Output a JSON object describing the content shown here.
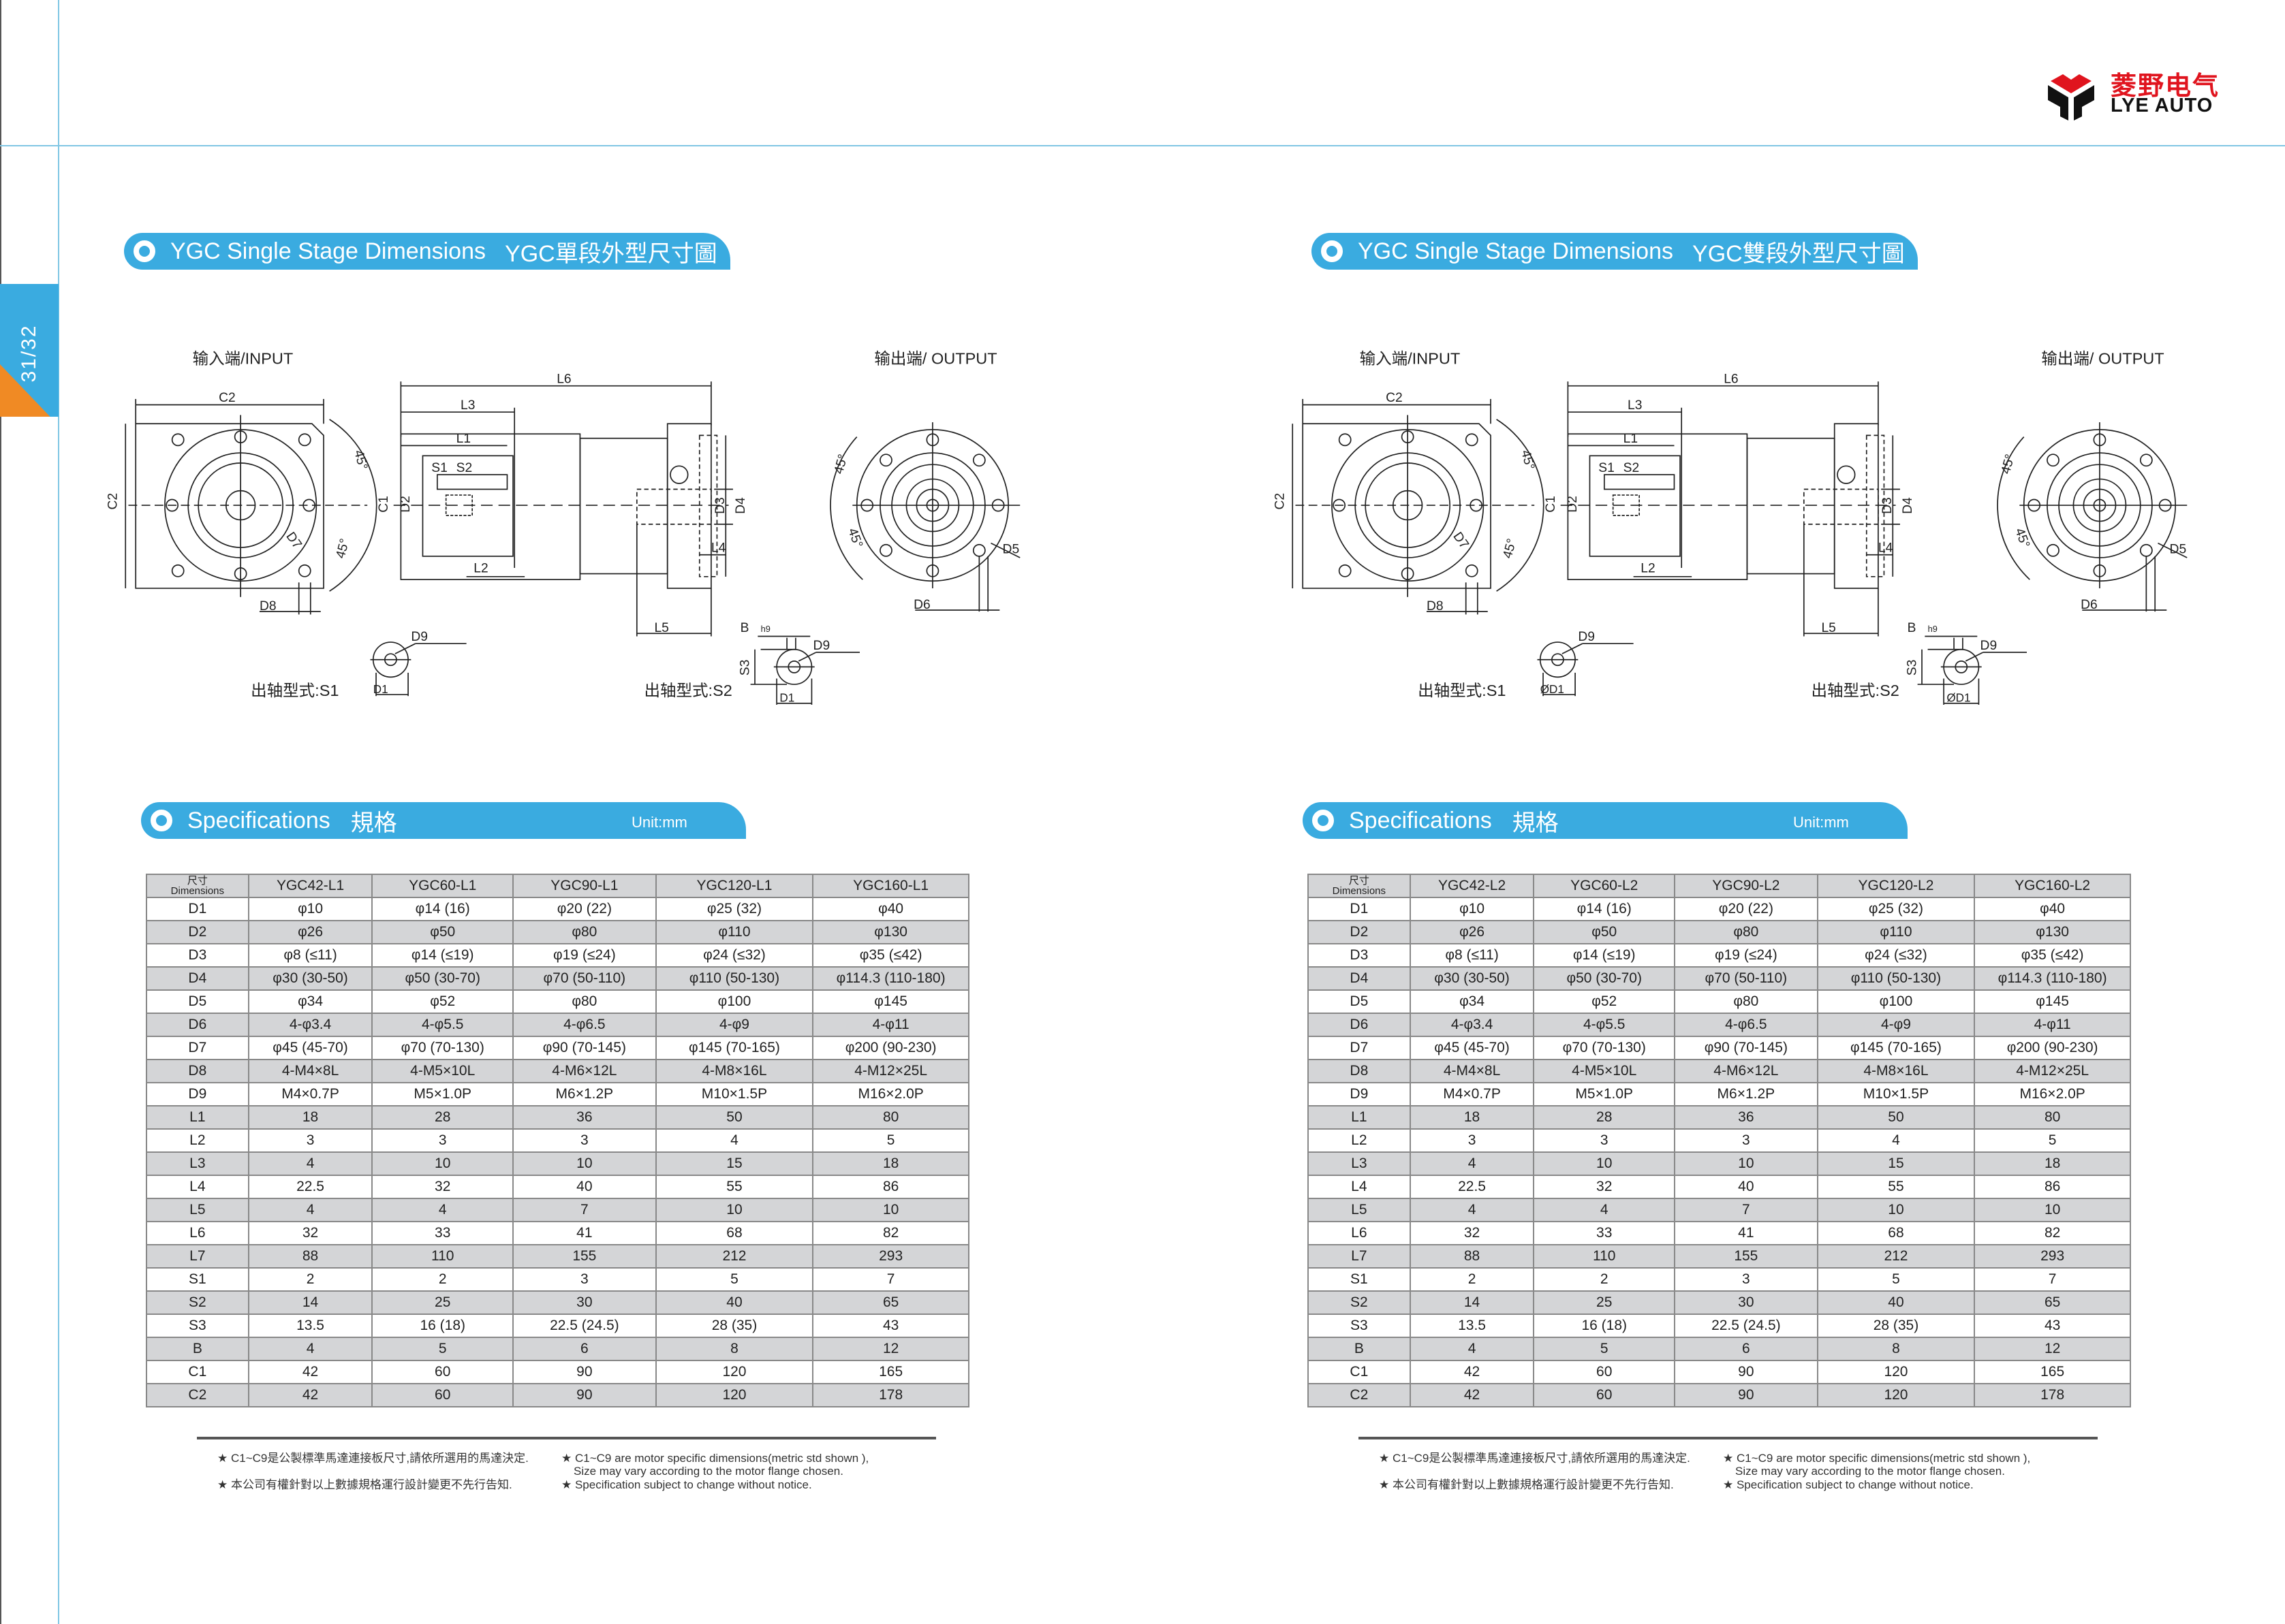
{
  "page_number": "31/32",
  "logo": {
    "cn": "菱野电气",
    "en": "LYE AUTO",
    "brand_red": "#e0141e"
  },
  "colors": {
    "accent_blue": "#3aabe0",
    "accent_orange": "#f08a24",
    "row_gray": "#d4d5d7"
  },
  "panels": [
    {
      "dim_title_en": "YGC Single Stage Dimensions",
      "dim_title_cn": "YGC單段外型尺寸圖",
      "drawing": {
        "input_caption": "输入端/INPUT",
        "output_caption": "输出端/ OUTPUT",
        "s1_caption": "出轴型式:S1",
        "s2_caption": "出轴型式:S2",
        "labels": {
          "C2": "C2",
          "C1": "C1",
          "D2": "D2",
          "L6": "L6",
          "L3": "L3",
          "L1": "L1",
          "S1": "S1",
          "S2": "S2",
          "D3": "D3",
          "D4": "D4",
          "L4": "L4",
          "L2": "L2",
          "L5": "L5",
          "D8": "D8",
          "D7": "D7",
          "deg": "45°",
          "D5": "D5",
          "D6": "D6",
          "D9": "D9",
          "D1_s1": "D1",
          "D1_s2": "D1",
          "B": "B",
          "h9": "h9",
          "S3": "S3"
        }
      },
      "spec_title_en": "Specifications",
      "spec_title_cn": "規格",
      "unit": "Unit:mm",
      "table": {
        "header_cn": "尺寸",
        "header_en": "Dimensions",
        "columns": [
          "YGC42-L1",
          "YGC60-L1",
          "YGC90-L1",
          "YGC120-L1",
          "YGC160-L1"
        ]
      },
      "footnotes": {
        "cn1": "★ C1~C9是公製標準馬達連接板尺寸,請依所選用的馬達決定.",
        "en1a": "★ C1~C9 are motor specific dimensions(metric std shown ),",
        "en1b": "Size may vary according to the motor flange chosen.",
        "cn2": "★ 本公司有權針對以上數據規格運行設計變更不先行告知.",
        "en2": "★ Specification subject to change without notice."
      }
    },
    {
      "dim_title_en": "YGC Single Stage Dimensions",
      "dim_title_cn": "YGC雙段外型尺寸圖",
      "drawing": {
        "input_caption": "输入端/INPUT",
        "output_caption": "输出端/ OUTPUT",
        "s1_caption": "出轴型式:S1",
        "s2_caption": "出轴型式:S2",
        "labels": {
          "C2": "C2",
          "C1": "C1",
          "D2": "D2",
          "L6": "L6",
          "L3": "L3",
          "L1": "L1",
          "S1": "S1",
          "S2": "S2",
          "D3": "D3",
          "D4": "D4",
          "L4": "L4",
          "L2": "L2",
          "L5": "L5",
          "D8": "D8",
          "D7": "D7",
          "deg": "45°",
          "D5": "D5",
          "D6": "D6",
          "D9": "D9",
          "D1_s1": "ØD1",
          "D1_s2": "ØD1",
          "B": "B",
          "h9": "h9",
          "S3": "S3"
        }
      },
      "spec_title_en": "Specifications",
      "spec_title_cn": "規格",
      "unit": "Unit:mm",
      "table": {
        "header_cn": "尺寸",
        "header_en": "Dimensions",
        "columns": [
          "YGC42-L2",
          "YGC60-L2",
          "YGC90-L2",
          "YGC120-L2",
          "YGC160-L2"
        ]
      },
      "footnotes": {
        "cn1": "★ C1~C9是公製標準馬達連接板尺寸,請依所選用的馬達決定.",
        "en1a": "★ C1~C9 are motor specific dimensions(metric std shown ),",
        "en1b": "Size may vary according to the motor flange chosen.",
        "cn2": "★ 本公司有權針對以上數據規格運行設計變更不先行告知.",
        "en2": "★ Specification subject to change without notice."
      }
    }
  ],
  "spec_rows": [
    [
      "D1",
      "φ10",
      "φ14 (16)",
      "φ20 (22)",
      "φ25 (32)",
      "φ40"
    ],
    [
      "D2",
      "φ26",
      "φ50",
      "φ80",
      "φ110",
      "φ130"
    ],
    [
      "D3",
      "φ8 (≤11)",
      "φ14 (≤19)",
      "φ19 (≤24)",
      "φ24 (≤32)",
      "φ35 (≤42)"
    ],
    [
      "D4",
      "φ30 (30-50)",
      "φ50 (30-70)",
      "φ70 (50-110)",
      "φ110 (50-130)",
      "φ114.3 (110-180)"
    ],
    [
      "D5",
      "φ34",
      "φ52",
      "φ80",
      "φ100",
      "φ145"
    ],
    [
      "D6",
      "4-φ3.4",
      "4-φ5.5",
      "4-φ6.5",
      "4-φ9",
      "4-φ11"
    ],
    [
      "D7",
      "φ45 (45-70)",
      "φ70 (70-130)",
      "φ90 (70-145)",
      "φ145 (70-165)",
      "φ200 (90-230)"
    ],
    [
      "D8",
      "4-M4×8L",
      "4-M5×10L",
      "4-M6×12L",
      "4-M8×16L",
      "4-M12×25L"
    ],
    [
      "D9",
      "M4×0.7P",
      "M5×1.0P",
      "M6×1.2P",
      "M10×1.5P",
      "M16×2.0P"
    ],
    [
      "L1",
      "18",
      "28",
      "36",
      "50",
      "80"
    ],
    [
      "L2",
      "3",
      "3",
      "3",
      "4",
      "5"
    ],
    [
      "L3",
      "4",
      "10",
      "10",
      "15",
      "18"
    ],
    [
      "L4",
      "22.5",
      "32",
      "40",
      "55",
      "86"
    ],
    [
      "L5",
      "4",
      "4",
      "7",
      "10",
      "10"
    ],
    [
      "L6",
      "32",
      "33",
      "41",
      "68",
      "82"
    ],
    [
      "L7",
      "88",
      "110",
      "155",
      "212",
      "293"
    ],
    [
      "S1",
      "2",
      "2",
      "3",
      "5",
      "7"
    ],
    [
      "S2",
      "14",
      "25",
      "30",
      "40",
      "65"
    ],
    [
      "S3",
      "13.5",
      "16 (18)",
      "22.5 (24.5)",
      "28 (35)",
      "43"
    ],
    [
      "B",
      "4",
      "5",
      "6",
      "8",
      "12"
    ],
    [
      "C1",
      "42",
      "60",
      "90",
      "120",
      "165"
    ],
    [
      "C2",
      "42",
      "60",
      "90",
      "120",
      "178"
    ]
  ]
}
